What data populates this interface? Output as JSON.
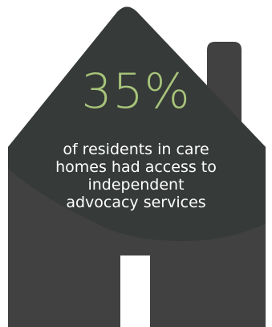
{
  "infographic": {
    "stat_value": "35%",
    "caption_lines": [
      "of residents in care",
      "homes had access to",
      "independent",
      "advocacy services"
    ]
  },
  "colors": {
    "house": "#414142",
    "roof_panel": "#363a38",
    "accent_green": "#a7c47a",
    "text_white": "#ffffff",
    "door": "#ffffff",
    "background": "#ffffff"
  },
  "icons": {
    "house": "house-icon",
    "chimney": "chimney-icon",
    "door": "door-icon"
  }
}
